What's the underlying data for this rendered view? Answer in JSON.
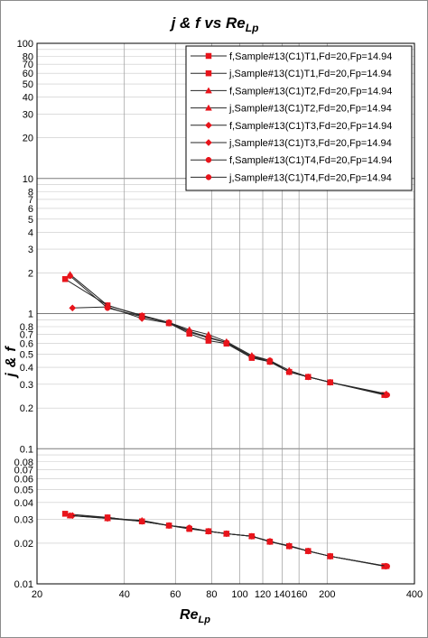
{
  "chart_data": {
    "type": "line",
    "title": {
      "main": "j & f vs Re",
      "sub": "Lp"
    },
    "xlabel": {
      "main": "Re",
      "sub": "Lp"
    },
    "ylabel": {
      "j": "j",
      "amp": "&",
      "f": "f"
    },
    "xscale": "log",
    "yscale": "log",
    "xlim": [
      20,
      400
    ],
    "ylim": [
      0.01,
      100
    ],
    "x_ticks": [
      {
        "v": 20,
        "label": "20"
      },
      {
        "v": 40,
        "label": "40"
      },
      {
        "v": 60,
        "label": "60"
      },
      {
        "v": 80,
        "label": "80"
      },
      {
        "v": 100,
        "label": "100"
      },
      {
        "v": 120,
        "label": "120"
      },
      {
        "v": 140,
        "label": "140"
      },
      {
        "v": 160,
        "label": "160"
      },
      {
        "v": 200,
        "label": "200"
      },
      {
        "v": 400,
        "label": "400"
      }
    ],
    "y_ticks": [
      {
        "v": 0.01,
        "label": "0.01"
      },
      {
        "v": 0.02,
        "label": "0.02"
      },
      {
        "v": 0.03,
        "label": "0.03"
      },
      {
        "v": 0.04,
        "label": "0.04"
      },
      {
        "v": 0.05,
        "label": "0.05"
      },
      {
        "v": 0.06,
        "label": "0.06"
      },
      {
        "v": 0.07,
        "label": "0.07"
      },
      {
        "v": 0.08,
        "label": "0.08"
      },
      {
        "v": 0.1,
        "label": "0.1"
      },
      {
        "v": 0.2,
        "label": "0.2"
      },
      {
        "v": 0.3,
        "label": "0.3"
      },
      {
        "v": 0.4,
        "label": "0.4"
      },
      {
        "v": 0.5,
        "label": "0.5"
      },
      {
        "v": 0.6,
        "label": "0.6"
      },
      {
        "v": 0.7,
        "label": "0.7"
      },
      {
        "v": 0.8,
        "label": "0.8"
      },
      {
        "v": 1,
        "label": "1"
      },
      {
        "v": 2,
        "label": "2"
      },
      {
        "v": 3,
        "label": "3"
      },
      {
        "v": 4,
        "label": "4"
      },
      {
        "v": 5,
        "label": "5"
      },
      {
        "v": 6,
        "label": "6"
      },
      {
        "v": 7,
        "label": "7"
      },
      {
        "v": 8,
        "label": "8"
      },
      {
        "v": 10,
        "label": "10"
      },
      {
        "v": 20,
        "label": "20"
      },
      {
        "v": 30,
        "label": "30"
      },
      {
        "v": 40,
        "label": "40"
      },
      {
        "v": 50,
        "label": "50"
      },
      {
        "v": 60,
        "label": "60"
      },
      {
        "v": 70,
        "label": "70"
      },
      {
        "v": 80,
        "label": "80"
      },
      {
        "v": 100,
        "label": "100"
      }
    ],
    "grid": true,
    "legend_position": "top-right",
    "marker_color": "#e8141b",
    "line_color": "#262626",
    "series": [
      {
        "name": "f,Sample#13(C1)T1,Fd=20,Fp=14.94",
        "marker": "square",
        "x": [
          25,
          35,
          46,
          57,
          67,
          78,
          90,
          110,
          127,
          148,
          172,
          205,
          315
        ],
        "y": [
          1.8,
          1.15,
          0.96,
          0.85,
          0.71,
          0.63,
          0.6,
          0.47,
          0.44,
          0.37,
          0.34,
          0.31,
          0.25
        ]
      },
      {
        "name": "j,Sample#13(C1)T1,Fd=20,Fp=14.94",
        "marker": "square",
        "x": [
          25,
          35,
          46,
          57,
          67,
          78,
          90,
          110,
          127,
          148,
          172,
          205,
          315
        ],
        "y": [
          0.033,
          0.031,
          0.029,
          0.027,
          0.0255,
          0.0245,
          0.0235,
          0.0225,
          0.0205,
          0.019,
          0.0175,
          0.016,
          0.0135
        ]
      },
      {
        "name": "f,Sample#13(C1)T2,Fd=20,Fp=14.94",
        "marker": "triangle",
        "x": [
          26,
          35,
          46,
          57,
          67,
          78,
          90,
          110,
          127,
          148,
          172,
          205,
          320
        ],
        "y": [
          1.95,
          1.15,
          0.97,
          0.86,
          0.76,
          0.7,
          0.62,
          0.49,
          0.45,
          0.38,
          0.34,
          0.31,
          0.255
        ]
      },
      {
        "name": "j,Sample#13(C1)T2,Fd=20,Fp=14.94",
        "marker": "triangle",
        "x": [
          26,
          35,
          46,
          57,
          67,
          78,
          90,
          110,
          127,
          148,
          172,
          205,
          320
        ],
        "y": [
          0.032,
          0.0305,
          0.0295,
          0.027,
          0.026,
          0.0245,
          0.0235,
          0.0225,
          0.0205,
          0.0192,
          0.0175,
          0.016,
          0.0135
        ]
      },
      {
        "name": "f,Sample#13(C1)T3,Fd=20,Fp=14.94",
        "marker": "diamond",
        "x": [
          26.5,
          35,
          46,
          57,
          67,
          78,
          90,
          110,
          127,
          148,
          172,
          205,
          318
        ],
        "y": [
          1.1,
          1.12,
          0.92,
          0.85,
          0.73,
          0.66,
          0.61,
          0.48,
          0.44,
          0.37,
          0.34,
          0.31,
          0.25
        ]
      },
      {
        "name": "j,Sample#13(C1)T3,Fd=20,Fp=14.94",
        "marker": "diamond",
        "x": [
          26.5,
          35,
          46,
          57,
          67,
          78,
          90,
          110,
          127,
          148,
          172,
          205,
          318
        ],
        "y": [
          0.032,
          0.0305,
          0.029,
          0.027,
          0.0258,
          0.0245,
          0.0235,
          0.0225,
          0.0205,
          0.019,
          0.0175,
          0.016,
          0.0135
        ]
      },
      {
        "name": "f,Sample#13(C1)T4,Fd=20,Fp=14.94",
        "marker": "circle",
        "x": [
          26,
          35,
          46,
          57,
          67,
          78,
          90,
          110,
          127,
          148,
          172,
          205,
          322
        ],
        "y": [
          1.9,
          1.1,
          0.95,
          0.86,
          0.74,
          0.67,
          0.61,
          0.48,
          0.45,
          0.37,
          0.34,
          0.31,
          0.25
        ]
      },
      {
        "name": "j,Sample#13(C1)T4,Fd=20,Fp=14.94",
        "marker": "circle",
        "x": [
          26,
          35,
          46,
          57,
          67,
          78,
          90,
          110,
          127,
          148,
          172,
          205,
          322
        ],
        "y": [
          0.032,
          0.031,
          0.029,
          0.027,
          0.026,
          0.0245,
          0.0235,
          0.0225,
          0.0207,
          0.019,
          0.0175,
          0.016,
          0.0135
        ]
      }
    ]
  }
}
